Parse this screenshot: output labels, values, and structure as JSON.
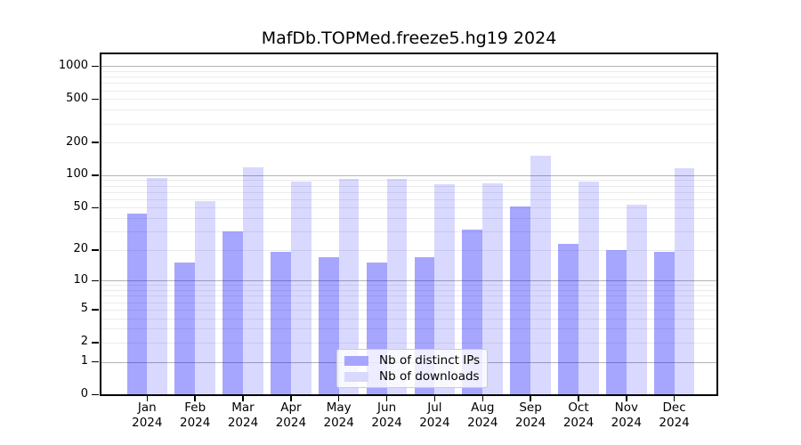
{
  "figure": {
    "background": "#ffffff"
  },
  "chart_data": {
    "type": "bar",
    "title": "MafDb.TOPMed.freeze5.hg19 2024",
    "xlabel": "",
    "ylabel": "",
    "categories": [
      "Jan 2024",
      "Feb 2024",
      "Mar 2024",
      "Apr 2024",
      "May 2024",
      "Jun 2024",
      "Jul 2024",
      "Aug 2024",
      "Sep 2024",
      "Oct 2024",
      "Nov 2024",
      "Dec 2024"
    ],
    "series": [
      {
        "key": "ips",
        "name": "Nb of distinct IPs",
        "color": "rgba(0,0,255,0.35)",
        "legend_color": "#a6a6ff",
        "values": [
          44,
          15,
          30,
          19,
          17,
          15,
          17,
          31,
          51,
          23,
          20,
          19
        ]
      },
      {
        "key": "downloads",
        "name": "Nb of downloads",
        "color": "rgba(0,0,255,0.15)",
        "legend_color": "#d9d9ff",
        "values": [
          94,
          58,
          118,
          88,
          92,
          92,
          82,
          84,
          150,
          88,
          53,
          117
        ]
      }
    ],
    "y_axis": {
      "scale": "log1p",
      "tick_values": [
        0,
        1,
        2,
        5,
        10,
        20,
        50,
        100,
        200,
        500,
        1000
      ],
      "major_grid_values": [
        1,
        10,
        100,
        1000
      ],
      "minor_grid_values": [
        2,
        3,
        4,
        5,
        6,
        7,
        8,
        9,
        20,
        30,
        40,
        50,
        60,
        70,
        80,
        90,
        200,
        300,
        400,
        500,
        600,
        700,
        800,
        900
      ],
      "ylim": [
        0,
        1300
      ]
    },
    "grid": true,
    "legend": {
      "position": "bottom-center",
      "entries": [
        "Nb of distinct IPs",
        "Nb of downloads"
      ]
    },
    "colors": {
      "grid_major": "#b3b3b3",
      "grid_minor": "#ebebeb",
      "axis": "#000000",
      "legend_border": "#cccccc",
      "legend_background": "rgba(255,255,255,0.8)"
    }
  }
}
